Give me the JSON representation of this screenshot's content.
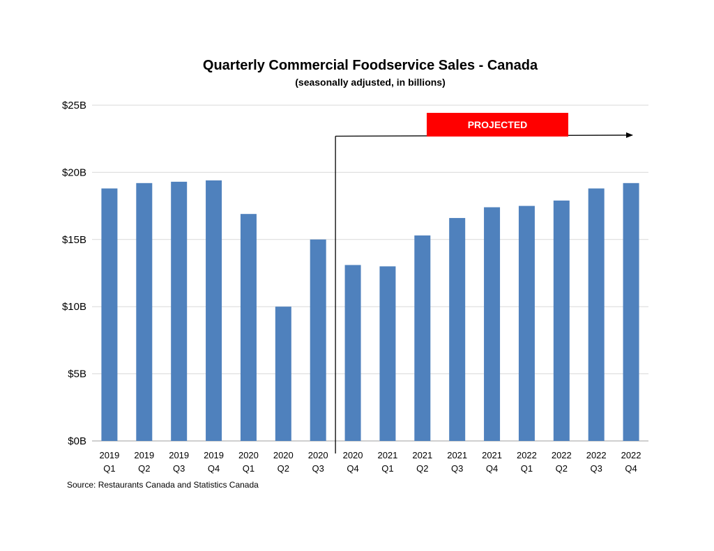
{
  "chart_data": {
    "type": "bar",
    "title": "Quarterly Commercial Foodservice Sales - Canada",
    "subtitle": "(seasonally adjusted, in billions)",
    "ylim": [
      0,
      25
    ],
    "yticks": [
      0,
      5,
      10,
      15,
      20,
      25
    ],
    "ytick_labels": [
      "$0B",
      "$5B",
      "$10B",
      "$15B",
      "$20B",
      "$25B"
    ],
    "grid": true,
    "categories": [
      [
        "2019",
        "Q1"
      ],
      [
        "2019",
        "Q2"
      ],
      [
        "2019",
        "Q3"
      ],
      [
        "2019",
        "Q4"
      ],
      [
        "2020",
        "Q1"
      ],
      [
        "2020",
        "Q2"
      ],
      [
        "2020",
        "Q3"
      ],
      [
        "2020",
        "Q4"
      ],
      [
        "2021",
        "Q1"
      ],
      [
        "2021",
        "Q2"
      ],
      [
        "2021",
        "Q3"
      ],
      [
        "2021",
        "Q4"
      ],
      [
        "2022",
        "Q1"
      ],
      [
        "2022",
        "Q2"
      ],
      [
        "2022",
        "Q3"
      ],
      [
        "2022",
        "Q4"
      ]
    ],
    "values": [
      18.8,
      19.2,
      19.3,
      19.4,
      16.9,
      10.0,
      15.0,
      13.1,
      13.0,
      15.3,
      16.6,
      17.4,
      17.5,
      17.9,
      18.8,
      19.2
    ],
    "bar_color": "#4f81bd",
    "annotation": {
      "label": "PROJECTED",
      "color": "#ff0000",
      "starts_after_category": "2020 Q3"
    },
    "source": "Source: Restaurants Canada and Statistics Canada"
  }
}
